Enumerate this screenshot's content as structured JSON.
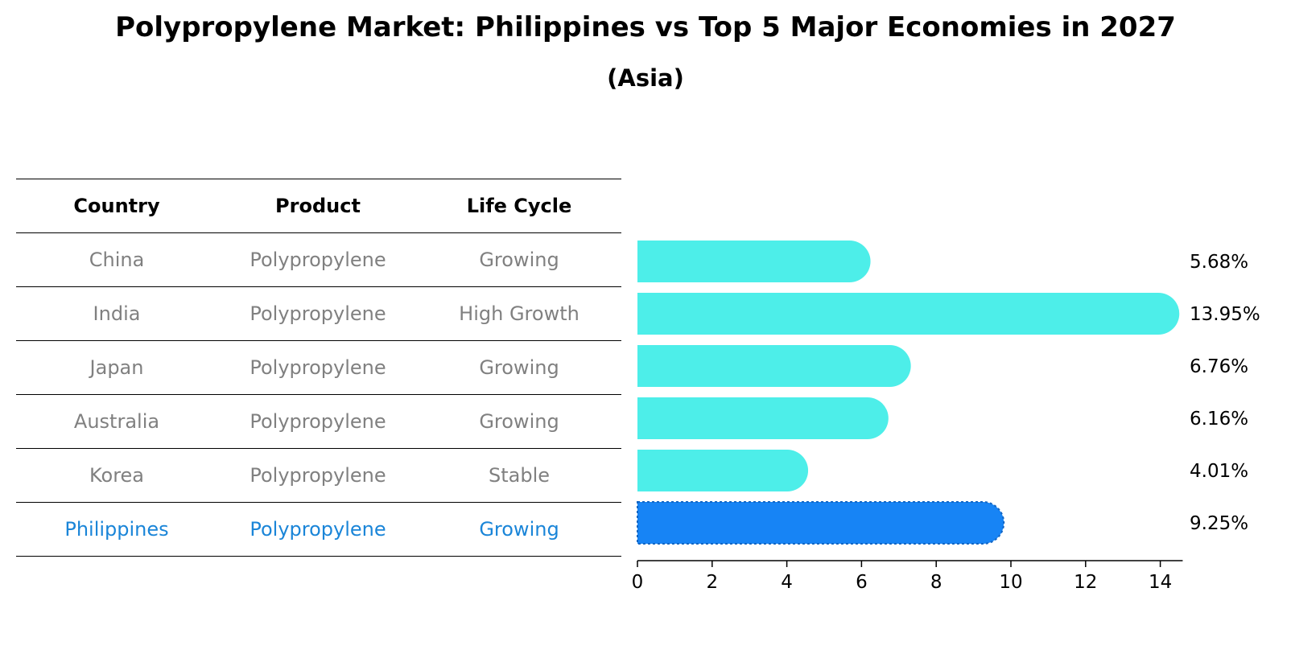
{
  "chart_data": {
    "type": "bar",
    "orientation": "horizontal",
    "title": "Polypropylene Market: Philippines vs Top 5 Major Economies in 2027",
    "subtitle": "(Asia)",
    "categories": [
      "China",
      "India",
      "Japan",
      "Australia",
      "Korea",
      "Philippines"
    ],
    "values": [
      5.68,
      13.95,
      6.76,
      6.16,
      4.01,
      9.25
    ],
    "value_labels": [
      "5.68%",
      "13.95%",
      "6.76%",
      "6.16%",
      "4.01%",
      "9.25%"
    ],
    "xlim": [
      0,
      14.6
    ],
    "xticks": [
      0,
      2,
      4,
      6,
      8,
      10,
      12,
      14
    ],
    "highlight_index": 5,
    "colors": {
      "bar": "#4deee9",
      "highlight": "#1784f5",
      "highlight_text": "#1a85d8",
      "muted_text": "#808080"
    },
    "grid": false,
    "legend": "none"
  },
  "table": {
    "headers": [
      "Country",
      "Product",
      "Life Cycle"
    ],
    "rows": [
      [
        "China",
        "Polypropylene",
        "Growing"
      ],
      [
        "India",
        "Polypropylene",
        "High Growth"
      ],
      [
        "Japan",
        "Polypropylene",
        "Growing"
      ],
      [
        "Australia",
        "Polypropylene",
        "Growing"
      ],
      [
        "Korea",
        "Polypropylene",
        "Stable"
      ],
      [
        "Philippines",
        "Polypropylene",
        "Growing"
      ]
    ]
  }
}
